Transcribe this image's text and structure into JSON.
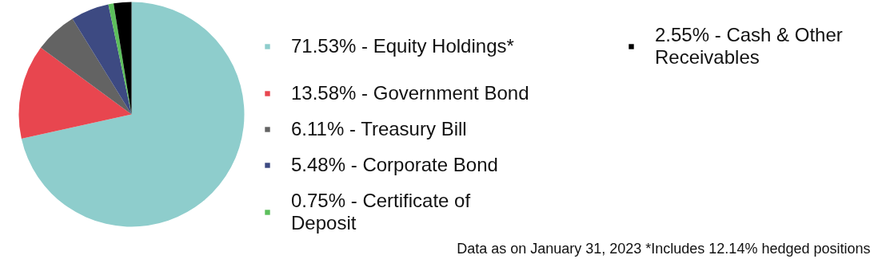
{
  "chart_data": {
    "type": "pie",
    "categories": [
      "Equity Holdings*",
      "Government Bond",
      "Treasury Bill",
      "Corporate Bond",
      "Certificate of Deposit",
      "Cash & Other Receivables"
    ],
    "values": [
      71.53,
      13.58,
      6.11,
      5.48,
      0.75,
      2.55
    ],
    "colors": [
      "#8ecdcc",
      "#e8464f",
      "#636363",
      "#3d4a82",
      "#5cbf5c",
      "#000000"
    ],
    "value_labels": [
      "71.53%",
      "13.58%",
      "6.11%",
      "5.48%",
      "0.75%",
      "2.55%"
    ],
    "legend": "right",
    "annotations": [
      "Data as on January 31, 2023 *Includes 12.14% hedged positions"
    ]
  }
}
